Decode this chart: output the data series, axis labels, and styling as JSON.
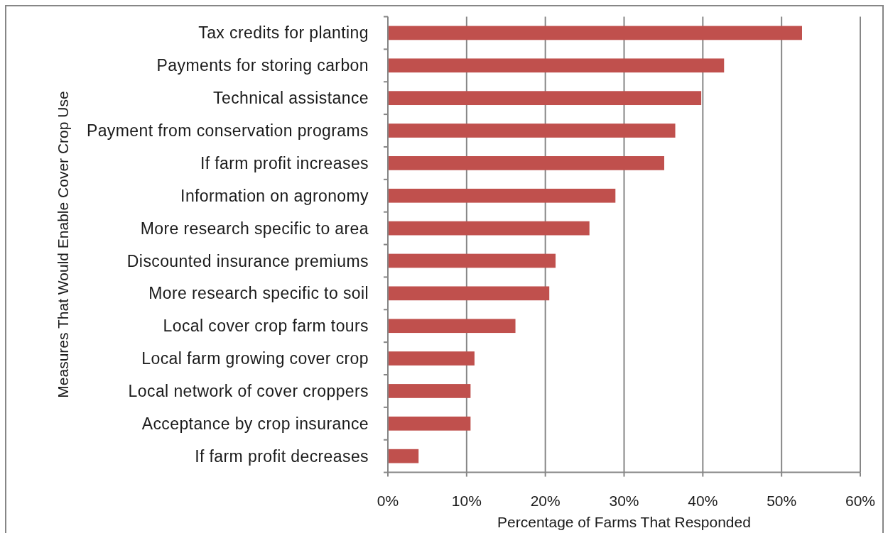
{
  "chart_data": {
    "type": "bar",
    "orientation": "horizontal",
    "categories": [
      "Tax credits for planting",
      "Payments for storing carbon",
      "Technical assistance",
      "Payment from conservation programs",
      "If farm profit increases",
      "Information on agronomy",
      "More research specific to area",
      "Discounted insurance premiums",
      "More research specific to soil",
      "Local cover crop farm tours",
      "Local farm growing cover crop",
      "Local network of cover croppers",
      "Acceptance by crop insurance",
      "If farm profit decreases"
    ],
    "values": [
      52.6,
      42.7,
      39.8,
      36.5,
      35.1,
      28.9,
      25.6,
      21.3,
      20.5,
      16.2,
      11.0,
      10.5,
      10.5,
      3.9
    ],
    "color": "#c0504d",
    "xlabel": "Percentage of Farms That Responded",
    "ylabel": "Measures That Would Enable Cover Crop Use",
    "xlim": [
      0,
      60
    ],
    "xticks": [
      {
        "value": 0,
        "label": "0%"
      },
      {
        "value": 10,
        "label": "10%"
      },
      {
        "value": 20,
        "label": "20%"
      },
      {
        "value": 30,
        "label": "30%"
      },
      {
        "value": 40,
        "label": "40%"
      },
      {
        "value": 50,
        "label": "50%"
      },
      {
        "value": 60,
        "label": "60%"
      }
    ],
    "grid": "x"
  }
}
